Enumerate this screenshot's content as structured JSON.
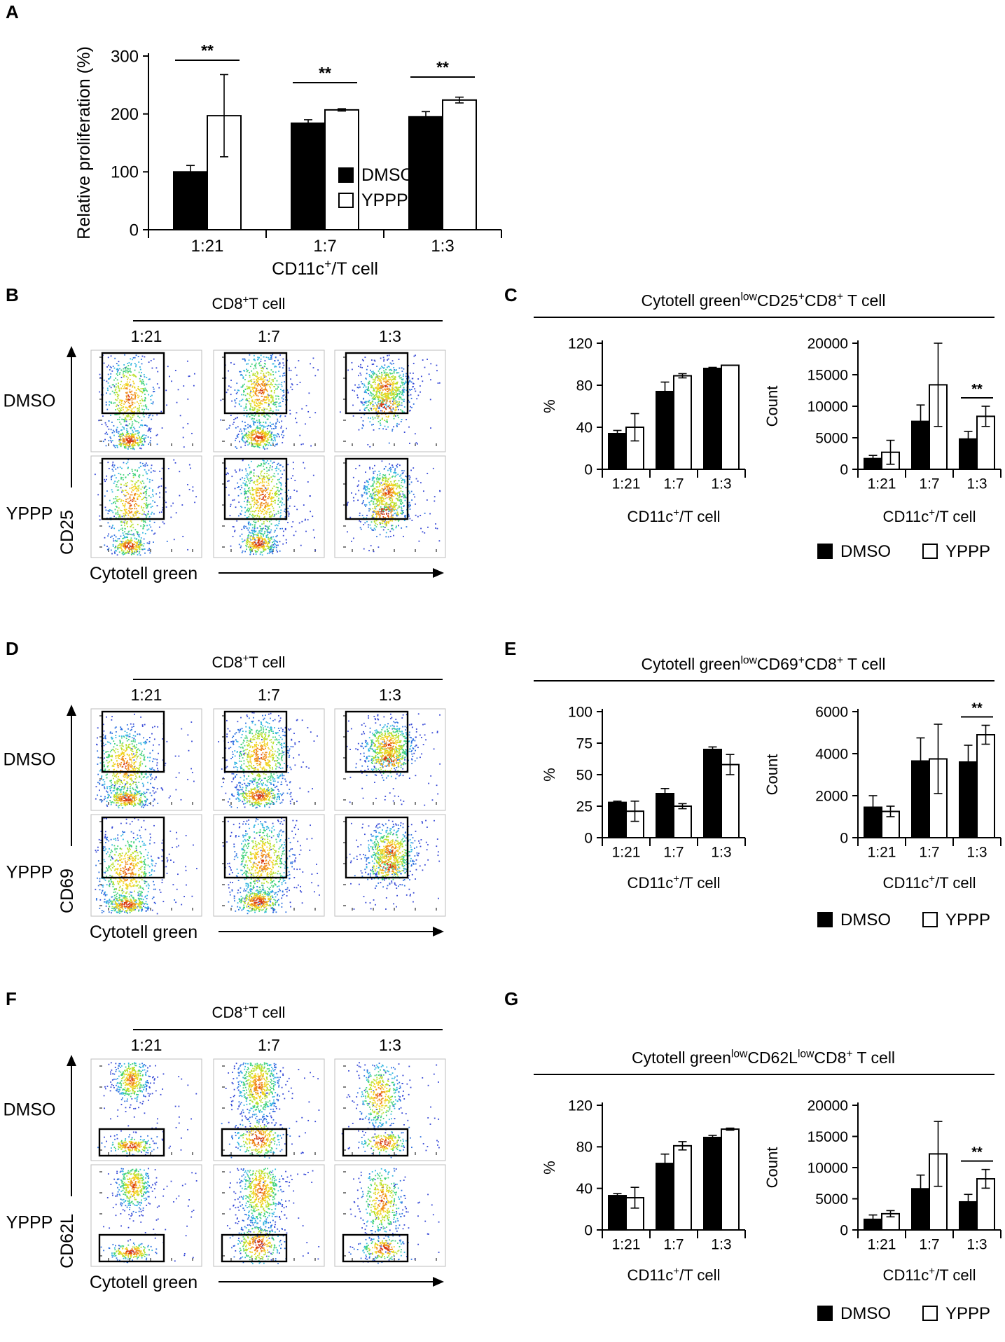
{
  "colors": {
    "dmso": "#000000",
    "yppp": "#ffffff",
    "axis": "#000000"
  },
  "panel_letters": [
    "A",
    "B",
    "C",
    "D",
    "E",
    "F",
    "G"
  ],
  "legend": {
    "dmso": "DMSO",
    "yppp": "YPPP"
  },
  "common": {
    "xlabel": "CD11c",
    "xlabel_sup": "+",
    "xlabel_rest": "/T cell",
    "cd8_title": "CD8",
    "cd8_sup": "+",
    "cd8_rest": "T cell",
    "cd8_title_b": "CD8",
    "cd8_sup_b": "+",
    "cd8_rest_b": "T cell",
    "ratios": [
      "1:21",
      "1:7",
      "1:3"
    ],
    "rows": [
      "DMSO",
      "YPPP"
    ],
    "flow_x_axis": "Cytotell green"
  },
  "flow_panels": [
    {
      "letter": "B",
      "y_axis": "CD25",
      "gate": "upper"
    },
    {
      "letter": "D",
      "y_axis": "CD69",
      "gate": "upper"
    },
    {
      "letter": "F",
      "y_axis": "CD62L",
      "gate": "lower"
    }
  ],
  "group_titles": [
    {
      "letter": "C",
      "parts": [
        "Cytotell green",
        "low",
        "CD25",
        "+",
        "CD8",
        "+",
        " T cell"
      ]
    },
    {
      "letter": "E",
      "parts": [
        "Cytotell green",
        "low",
        "CD69",
        "+",
        "CD8",
        "+",
        " T cell"
      ]
    },
    {
      "letter": "G",
      "parts": [
        "Cytotell green",
        "low",
        "CD62L",
        "low",
        "CD8",
        "+",
        " T cell"
      ]
    }
  ],
  "chart_data": [
    {
      "id": "A",
      "type": "bar",
      "title": "",
      "ylabel": "Relative proliferation (%)",
      "xlabel": "CD11c+/T cell",
      "categories": [
        "1:21",
        "1:7",
        "1:3"
      ],
      "ylim": [
        0,
        300
      ],
      "yticks": [
        0,
        100,
        200,
        300
      ],
      "series": [
        {
          "name": "DMSO",
          "values": [
            100,
            184,
            195
          ],
          "errors": [
            11,
            6,
            9
          ]
        },
        {
          "name": "YPPP",
          "values": [
            197,
            207,
            224
          ],
          "errors": [
            71,
            2,
            5
          ]
        }
      ],
      "significance": [
        {
          "category": "1:21",
          "label": "**"
        },
        {
          "category": "1:7",
          "label": "**"
        },
        {
          "category": "1:3",
          "label": "**"
        }
      ]
    },
    {
      "id": "C1",
      "type": "bar",
      "ylabel": "%",
      "xlabel": "CD11c+/T cell",
      "categories": [
        "1:21",
        "1:7",
        "1:3"
      ],
      "ylim": [
        0,
        120
      ],
      "yticks": [
        0,
        40,
        80,
        120
      ],
      "series": [
        {
          "name": "DMSO",
          "values": [
            34,
            74,
            96
          ],
          "errors": [
            3,
            9,
            1
          ]
        },
        {
          "name": "YPPP",
          "values": [
            40,
            89,
            99
          ],
          "errors": [
            13,
            2,
            0
          ]
        }
      ],
      "significance": []
    },
    {
      "id": "C2",
      "type": "bar",
      "ylabel": "Count",
      "xlabel": "CD11c+/T cell",
      "categories": [
        "1:21",
        "1:7",
        "1:3"
      ],
      "ylim": [
        0,
        20000
      ],
      "yticks": [
        0,
        5000,
        10000,
        15000,
        20000
      ],
      "series": [
        {
          "name": "DMSO",
          "values": [
            1700,
            7600,
            4800
          ],
          "errors": [
            500,
            2600,
            1200
          ]
        },
        {
          "name": "YPPP",
          "values": [
            2700,
            13400,
            8400
          ],
          "errors": [
            1900,
            6600,
            1600
          ]
        }
      ],
      "significance": [
        {
          "category": "1:3",
          "label": "**"
        }
      ]
    },
    {
      "id": "E1",
      "type": "bar",
      "ylabel": "%",
      "xlabel": "CD11c+/T cell",
      "categories": [
        "1:21",
        "1:7",
        "1:3"
      ],
      "ylim": [
        0,
        100
      ],
      "yticks": [
        0,
        25,
        50,
        75,
        100
      ],
      "series": [
        {
          "name": "DMSO",
          "values": [
            28,
            35,
            70
          ],
          "errors": [
            1,
            4,
            2
          ]
        },
        {
          "name": "YPPP",
          "values": [
            21,
            25,
            58
          ],
          "errors": [
            8,
            2,
            8
          ]
        }
      ],
      "significance": []
    },
    {
      "id": "E2",
      "type": "bar",
      "ylabel": "Count",
      "xlabel": "CD11c+/T cell",
      "categories": [
        "1:21",
        "1:7",
        "1:3"
      ],
      "ylim": [
        0,
        6000
      ],
      "yticks": [
        0,
        2000,
        4000,
        6000
      ],
      "series": [
        {
          "name": "DMSO",
          "values": [
            1450,
            3650,
            3600
          ],
          "errors": [
            550,
            1100,
            800
          ]
        },
        {
          "name": "YPPP",
          "values": [
            1250,
            3750,
            4900
          ],
          "errors": [
            250,
            1650,
            450
          ]
        }
      ],
      "significance": [
        {
          "category": "1:3",
          "label": "**"
        }
      ]
    },
    {
      "id": "G1",
      "type": "bar",
      "ylabel": "%",
      "xlabel": "CD11c+/T cell",
      "categories": [
        "1:21",
        "1:7",
        "1:3"
      ],
      "ylim": [
        0,
        120
      ],
      "yticks": [
        0,
        40,
        80,
        120
      ],
      "series": [
        {
          "name": "DMSO",
          "values": [
            33,
            64,
            89
          ],
          "errors": [
            2,
            9,
            2
          ]
        },
        {
          "name": "YPPP",
          "values": [
            31,
            81,
            97
          ],
          "errors": [
            10,
            4,
            1
          ]
        }
      ],
      "significance": []
    },
    {
      "id": "G2",
      "type": "bar",
      "ylabel": "Count",
      "xlabel": "CD11c+/T cell",
      "categories": [
        "1:21",
        "1:7",
        "1:3"
      ],
      "ylim": [
        0,
        20000
      ],
      "yticks": [
        0,
        5000,
        10000,
        15000,
        20000
      ],
      "series": [
        {
          "name": "DMSO",
          "values": [
            1700,
            6600,
            4500
          ],
          "errors": [
            700,
            2200,
            1200
          ]
        },
        {
          "name": "YPPP",
          "values": [
            2600,
            12200,
            8200
          ],
          "errors": [
            500,
            5200,
            1500
          ]
        }
      ],
      "significance": [
        {
          "category": "1:3",
          "label": "**"
        }
      ]
    }
  ]
}
